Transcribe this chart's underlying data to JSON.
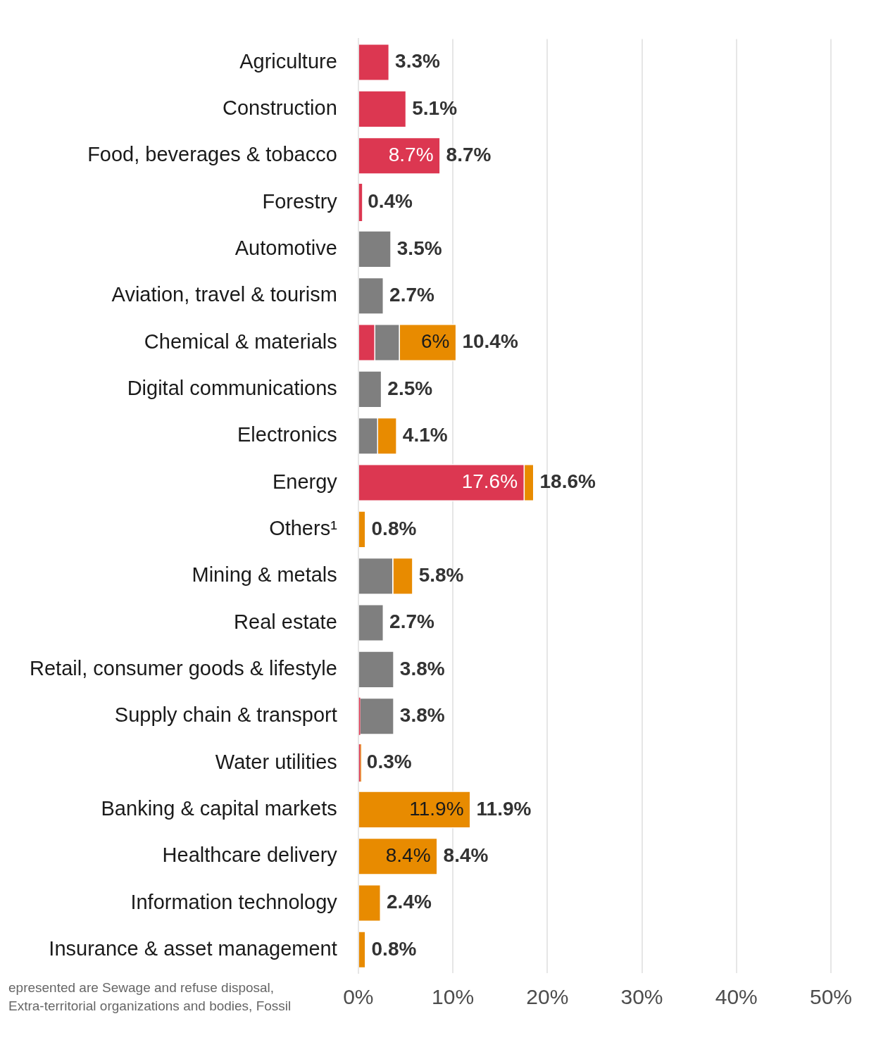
{
  "chart_data": {
    "type": "bar",
    "orientation": "horizontal",
    "stacked": true,
    "categories": [
      "Agriculture",
      "Construction",
      "Food, beverages & tobacco",
      "Forestry",
      "Automotive",
      "Aviation, travel & tourism",
      "Chemical & materials",
      "Digital communications",
      "Electronics",
      "Energy",
      "Others¹",
      "Mining & metals",
      "Real estate",
      "Retail, consumer goods & lifestyle",
      "Supply chain & transport",
      "Water utilities",
      "Banking & capital markets",
      "Healthcare delivery",
      "Information technology",
      "Insurance & asset management"
    ],
    "series": [
      {
        "color": "#dc3751",
        "values": [
          3.3,
          5.1,
          8.7,
          0.4,
          null,
          null,
          1.8,
          null,
          null,
          17.6,
          null,
          null,
          null,
          null,
          0.2,
          0.2,
          null,
          null,
          null,
          null
        ],
        "value_labels": [
          null,
          null,
          "8.7%",
          null,
          null,
          null,
          null,
          null,
          null,
          "17.6%",
          null,
          null,
          null,
          null,
          null,
          null,
          null,
          null,
          null,
          null
        ]
      },
      {
        "color": "#7f7f7f",
        "values": [
          null,
          null,
          null,
          null,
          3.5,
          2.7,
          2.6,
          2.5,
          2.1,
          null,
          null,
          3.7,
          2.7,
          3.8,
          3.6,
          null,
          null,
          null,
          null,
          null
        ]
      },
      {
        "color": "#e88b00",
        "values": [
          null,
          null,
          null,
          null,
          null,
          null,
          6,
          null,
          2.0,
          1.0,
          0.8,
          2.1,
          null,
          null,
          null,
          0.1,
          11.9,
          8.4,
          2.4,
          0.8
        ],
        "value_labels": [
          null,
          null,
          null,
          null,
          null,
          null,
          "6%",
          null,
          null,
          null,
          null,
          null,
          null,
          null,
          null,
          null,
          "11.9%",
          "8.4%",
          null,
          null
        ]
      }
    ],
    "totals": [
      "3.3%",
      "5.1%",
      "8.7%",
      "0.4%",
      "3.5%",
      "2.7%",
      "10.4%",
      "2.5%",
      "4.1%",
      "18.6%",
      "0.8%",
      "5.8%",
      "2.7%",
      "3.8%",
      "3.8%",
      "0.3%",
      "11.9%",
      "8.4%",
      "2.4%",
      "0.8%"
    ],
    "xlim": [
      0,
      50
    ],
    "xticks": [
      {
        "value": 0,
        "label": "0%"
      },
      {
        "value": 10,
        "label": "10%"
      },
      {
        "value": 20,
        "label": "20%"
      },
      {
        "value": 30,
        "label": "30%"
      },
      {
        "value": 40,
        "label": "40%"
      },
      {
        "value": 50,
        "label": "50%"
      }
    ],
    "grid": "x",
    "legend": false,
    "annotations": [
      "epresented are Sewage and refuse disposal,",
      "Extra-territorial organizations and bodies, Fossil"
    ]
  }
}
